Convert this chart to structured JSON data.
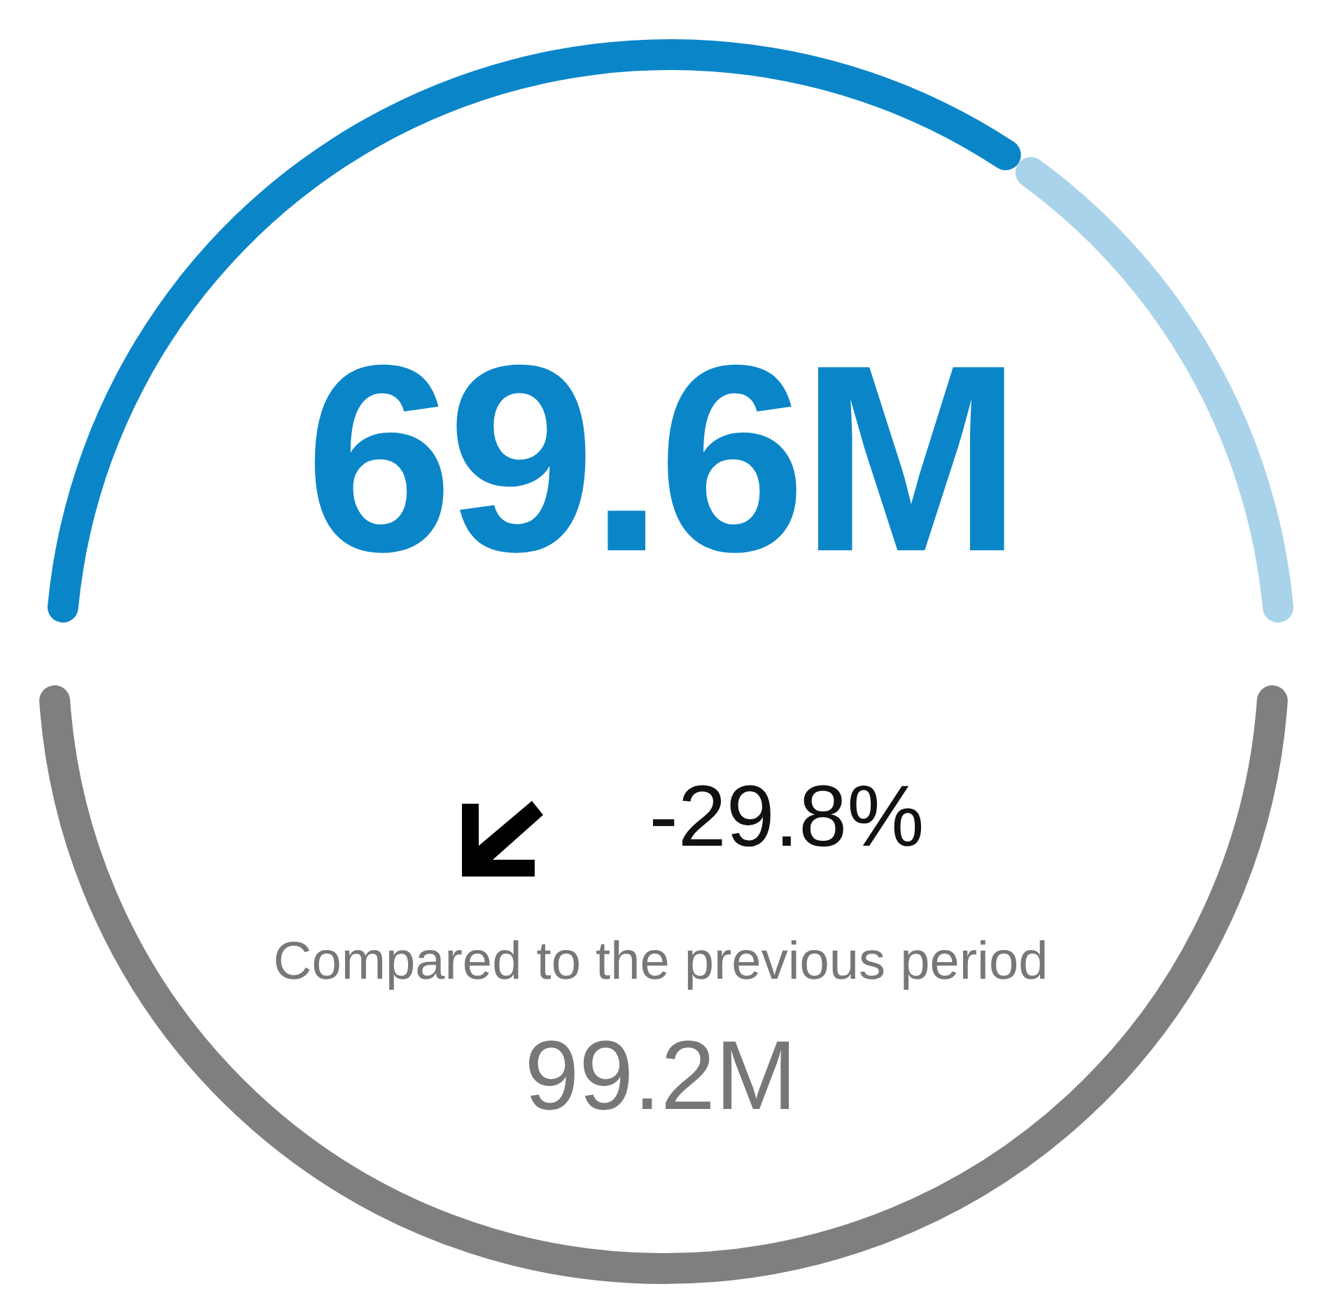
{
  "chart_data": {
    "type": "donut",
    "categories": [
      null,
      null
    ],
    "values": [
      70.2,
      29.8
    ],
    "colors": [
      "#0a86c8",
      "#a9d3ea"
    ],
    "annotations": [
      "69.6M",
      "-29.8%",
      "Compared to the previous period",
      "99.2M"
    ]
  }
}
